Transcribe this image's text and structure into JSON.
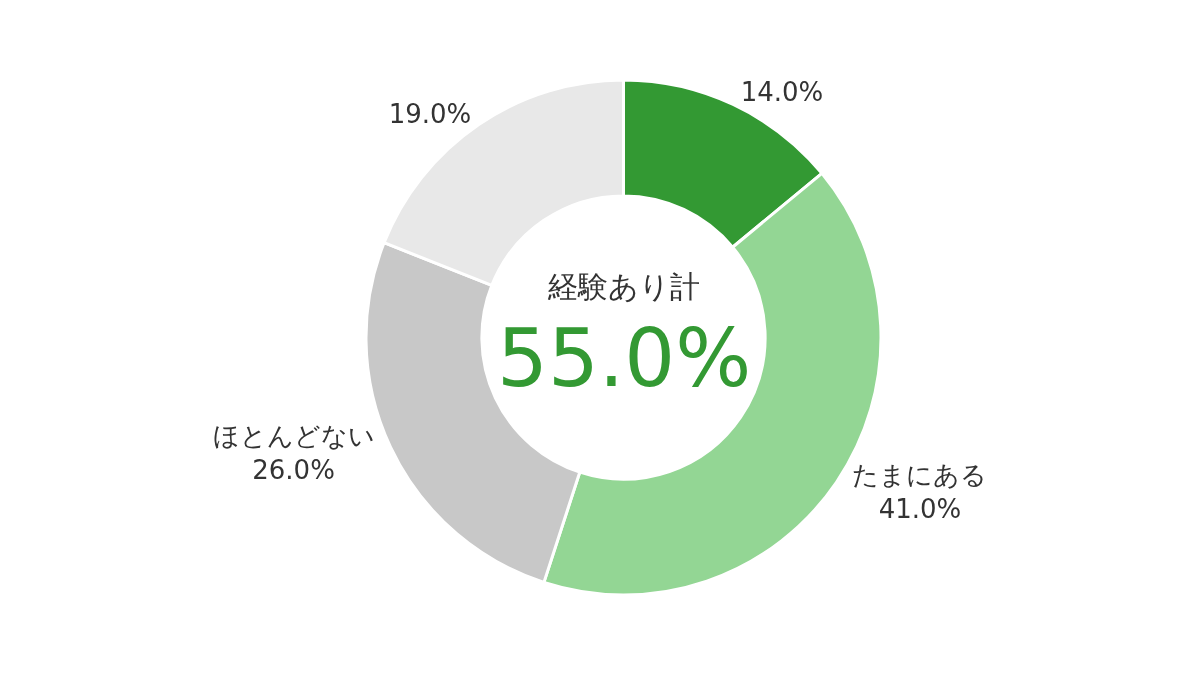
{
  "chart_data": {
    "type": "donut",
    "categories": [
      null,
      "たまにある",
      "ほとんどない",
      null
    ],
    "values": [
      14,
      41,
      26,
      19
    ],
    "colors": [
      "#339933",
      "#93d694",
      "#c8c8c8",
      "#e8e8e8"
    ],
    "value_labels": [
      "14.0%",
      "41.0%",
      "26.0%",
      "19.0%"
    ],
    "annotations": [
      "経験あり計",
      "55.0%"
    ],
    "legend": false
  }
}
